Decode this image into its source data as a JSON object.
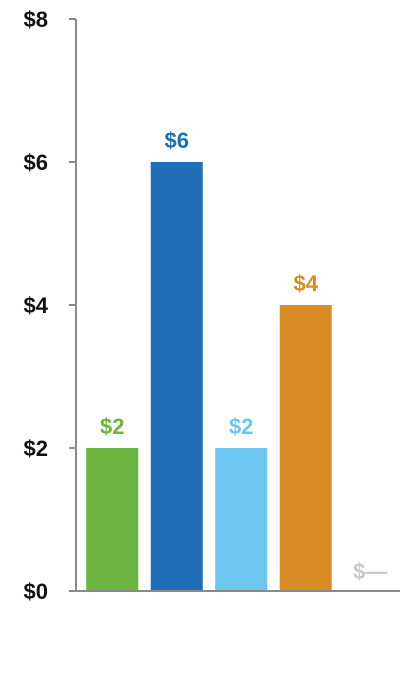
{
  "chart_data": {
    "type": "bar",
    "title": "",
    "xlabel": "",
    "ylabel": "",
    "ylim": [
      0,
      8
    ],
    "yticks": [
      {
        "value": 0,
        "label": "$0"
      },
      {
        "value": 2,
        "label": "$2"
      },
      {
        "value": 4,
        "label": "$4"
      },
      {
        "value": 6,
        "label": "$6"
      },
      {
        "value": 8,
        "label": "$8"
      }
    ],
    "grid": false,
    "legend": "none",
    "bars": [
      {
        "value": 2,
        "label": "$2",
        "color": "#6cb33f"
      },
      {
        "value": 6,
        "label": "$6",
        "color": "#1f6eb7"
      },
      {
        "value": 2,
        "label": "$2",
        "color": "#6cc6f0"
      },
      {
        "value": 4,
        "label": "$4",
        "color": "#d98b25"
      },
      {
        "value": null,
        "label": "$—",
        "color": "#c8c8c8"
      }
    ]
  }
}
